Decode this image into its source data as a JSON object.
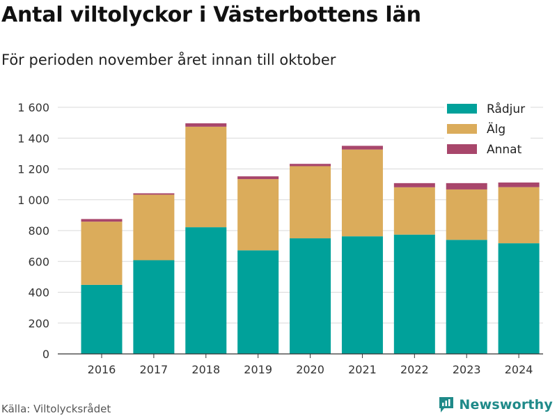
{
  "header": {
    "title": "Antal viltolyckor i Västerbottens län",
    "subtitle": "För perioden november året innan till oktober"
  },
  "footer": {
    "source": "Källa: Viltolycksrådet",
    "brand": "Newsworthy",
    "brand_icon": "newsworthy-logo-icon"
  },
  "colors": {
    "Rådjur": "#00a19a",
    "Älg": "#dbac5b",
    "Annat": "#a8466b",
    "grid": "#d9d9d9",
    "axis": "#333333"
  },
  "chart_data": {
    "type": "bar",
    "stacked": true,
    "categories": [
      "2016",
      "2017",
      "2018",
      "2019",
      "2020",
      "2021",
      "2022",
      "2023",
      "2024"
    ],
    "series": [
      {
        "name": "Rådjur",
        "values": [
          448,
          608,
          822,
          672,
          750,
          763,
          774,
          740,
          718
        ]
      },
      {
        "name": "Älg",
        "values": [
          410,
          425,
          652,
          462,
          468,
          563,
          307,
          327,
          364
        ]
      },
      {
        "name": "Annat",
        "values": [
          17,
          9,
          22,
          18,
          15,
          24,
          27,
          41,
          30
        ]
      }
    ],
    "ylim": [
      0,
      1600
    ],
    "yticks": [
      0,
      200,
      400,
      600,
      800,
      1000,
      1200,
      1400,
      1600
    ],
    "ytick_labels": [
      "0",
      "200",
      "400",
      "600",
      "800",
      "1 000",
      "1 200",
      "1 400",
      "1 600"
    ],
    "grid": true,
    "legend_position": "top-right",
    "legend_order": [
      "Rådjur",
      "Älg",
      "Annat"
    ]
  }
}
